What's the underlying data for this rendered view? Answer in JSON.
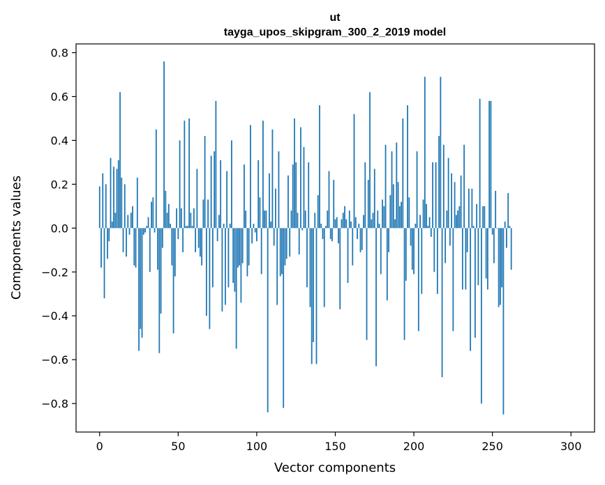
{
  "chart_data": {
    "type": "bar",
    "title_line1": "ut",
    "title_line2": "tayga_upos_skipgram_300_2_2019 model",
    "xlabel": "Vector components",
    "ylabel": "Components values",
    "xlim": [
      -15,
      315
    ],
    "ylim": [
      -0.93,
      0.84
    ],
    "xticks": [
      0,
      50,
      100,
      150,
      200,
      250,
      300
    ],
    "xtick_labels": [
      "0",
      "50",
      "100",
      "150",
      "200",
      "250",
      "300"
    ],
    "yticks": [
      -0.8,
      -0.6,
      -0.4,
      -0.2,
      0.0,
      0.2,
      0.4,
      0.6,
      0.8
    ],
    "ytick_labels": [
      "−0.8",
      "−0.6",
      "−0.4",
      "−0.2",
      "0.0",
      "0.2",
      "0.4",
      "0.6",
      "0.8"
    ],
    "bar_color": "#1f77b4",
    "values": [
      0.19,
      -0.18,
      0.25,
      -0.32,
      0.2,
      -0.14,
      -0.06,
      0.32,
      0.03,
      0.28,
      0.07,
      0.27,
      0.31,
      0.62,
      0.23,
      -0.11,
      0.2,
      -0.13,
      0.06,
      -0.03,
      0.07,
      0.1,
      -0.17,
      -0.18,
      0.23,
      -0.56,
      -0.46,
      -0.5,
      -0.03,
      -0.02,
      0.01,
      0.05,
      -0.2,
      0.12,
      0.14,
      -0.02,
      0.45,
      -0.19,
      -0.57,
      -0.39,
      -0.09,
      0.76,
      0.17,
      0.07,
      0.11,
      0.02,
      -0.17,
      -0.48,
      -0.22,
      0.09,
      -0.05,
      0.4,
      0.09,
      -0.11,
      0.49,
      0.01,
      0.01,
      0.5,
      0.07,
      0.01,
      0.09,
      -0.11,
      0.27,
      -0.09,
      -0.13,
      -0.17,
      0.13,
      0.42,
      -0.4,
      0.13,
      -0.46,
      0.33,
      -0.27,
      0.35,
      0.58,
      -0.06,
      0.06,
      0.31,
      -0.38,
      0.02,
      -0.35,
      0.26,
      -0.27,
      0.02,
      0.4,
      -0.25,
      -0.29,
      -0.55,
      -0.18,
      -0.17,
      -0.34,
      -0.16,
      0.29,
      0.08,
      -0.22,
      -0.17,
      0.47,
      -0.07,
      0.02,
      -0.02,
      -0.06,
      0.31,
      0.14,
      -0.21,
      0.49,
      0.08,
      0.08,
      -0.84,
      0.25,
      0.03,
      0.45,
      -0.08,
      0.18,
      -0.35,
      0.35,
      -0.22,
      -0.21,
      -0.82,
      -0.17,
      -0.14,
      0.24,
      -0.13,
      0.08,
      0.29,
      0.5,
      0.3,
      0.07,
      -0.12,
      0.46,
      -0.01,
      0.37,
      0.08,
      -0.27,
      0.3,
      -0.36,
      -0.62,
      -0.52,
      0.07,
      -0.62,
      0.15,
      0.56,
      0.02,
      -0.05,
      -0.36,
      0.01,
      0.08,
      0.26,
      -0.05,
      -0.06,
      0.22,
      0.04,
      0.05,
      -0.07,
      -0.37,
      0.04,
      0.07,
      0.1,
      0.04,
      -0.25,
      0.08,
      0.03,
      -0.17,
      0.52,
      0.05,
      -0.05,
      0.02,
      -0.11,
      -0.1,
      0.06,
      0.3,
      -0.51,
      0.22,
      0.62,
      0.04,
      0.07,
      0.27,
      -0.63,
      0.08,
      0.02,
      -0.21,
      0.13,
      0.1,
      0.38,
      -0.33,
      -0.11,
      0.15,
      0.35,
      0.2,
      0.04,
      0.39,
      0.21,
      0.1,
      0.12,
      0.5,
      -0.51,
      -0.24,
      0.56,
      0.14,
      -0.08,
      -0.19,
      -0.21,
      0.02,
      0.35,
      -0.47,
      0.06,
      -0.3,
      0.13,
      0.69,
      0.11,
      0.01,
      0.05,
      -0.04,
      0.3,
      -0.2,
      0.3,
      -0.3,
      0.42,
      0.69,
      -0.68,
      0.38,
      -0.16,
      0.08,
      0.32,
      -0.08,
      0.25,
      -0.47,
      0.21,
      0.06,
      0.08,
      0.1,
      0.24,
      -0.28,
      0.38,
      -0.28,
      -0.11,
      0.18,
      -0.56,
      0.18,
      0.01,
      -0.5,
      0.11,
      -0.26,
      0.59,
      -0.8,
      0.1,
      0.1,
      -0.23,
      -0.28,
      0.58,
      0.58,
      -0.03,
      -0.16,
      0.17,
      0.0,
      -0.36,
      -0.35,
      -0.27,
      -0.85,
      0.03,
      -0.09,
      0.16,
      0.01,
      -0.19
    ]
  }
}
